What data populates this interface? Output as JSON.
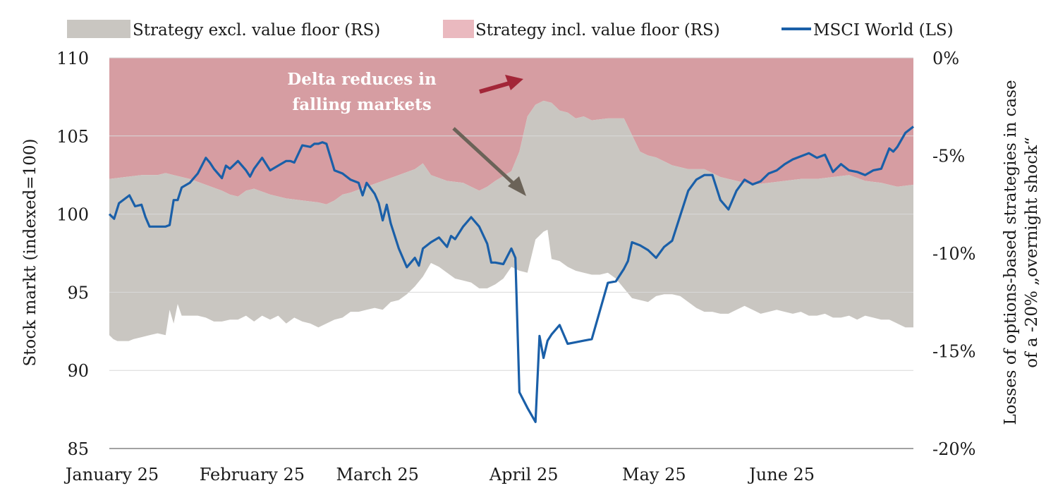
{
  "chart_data": {
    "type": "area",
    "legend": {
      "placement": "top",
      "items": [
        {
          "label": "Strategy excl. value floor (RS)",
          "color": "#c9c6c1",
          "kind": "area"
        },
        {
          "label": "Strategy incl. value floor (RS)",
          "color": "#eab9bf",
          "kind": "area"
        },
        {
          "label": "MSCI World (LS)",
          "color": "#1a5fa8",
          "kind": "line"
        }
      ]
    },
    "colors": {
      "grey_area": "#c9c6c1",
      "red_area": "#d69da2",
      "line": "#1a5fa8",
      "red_arrow": "#a32638",
      "grey_arrow": "#6b6358",
      "grid": "#d9d9d9",
      "axis": "#444444"
    },
    "left_axis": {
      "label": "Stock markt (indexed=100)",
      "range": [
        85,
        110
      ],
      "ticks": [
        85,
        90,
        95,
        100,
        105,
        110
      ]
    },
    "right_axis": {
      "label_lines": [
        "Losses of options-based strategies in case",
        "of a -20% „overnight shock“"
      ],
      "range": [
        -20,
        0
      ],
      "ticks": [
        {
          "value": 0,
          "label": "0%"
        },
        {
          "value": -5,
          "label": "-5%"
        },
        {
          "value": -10,
          "label": "-10%"
        },
        {
          "value": -15,
          "label": "-15%"
        },
        {
          "value": -20,
          "label": "-20%"
        }
      ]
    },
    "x_axis": {
      "range": [
        0,
        1
      ],
      "ticks": [
        {
          "label": "January 25",
          "pos": 0.0
        },
        {
          "label": "February 25",
          "pos": 0.174
        },
        {
          "label": "March 25",
          "pos": 0.33
        },
        {
          "label": "April 25",
          "pos": 0.512
        },
        {
          "label": "May 25",
          "pos": 0.674
        },
        {
          "label": "June 25",
          "pos": 0.833
        }
      ]
    },
    "annotation": {
      "lines": [
        "Delta reduces in",
        "falling markets"
      ]
    },
    "series": [
      {
        "name": "Strategy excl. value floor (RS)",
        "axis": "right",
        "x": [
          0.0,
          0.005,
          0.01,
          0.016,
          0.024,
          0.03,
          0.04,
          0.05,
          0.06,
          0.07,
          0.075,
          0.08,
          0.085,
          0.09,
          0.1,
          0.11,
          0.12,
          0.13,
          0.14,
          0.15,
          0.16,
          0.17,
          0.18,
          0.19,
          0.2,
          0.21,
          0.22,
          0.23,
          0.24,
          0.25,
          0.26,
          0.27,
          0.28,
          0.29,
          0.3,
          0.31,
          0.32,
          0.33,
          0.34,
          0.35,
          0.36,
          0.37,
          0.38,
          0.39,
          0.4,
          0.41,
          0.42,
          0.43,
          0.44,
          0.45,
          0.46,
          0.47,
          0.48,
          0.49,
          0.5,
          0.51,
          0.52,
          0.53,
          0.54,
          0.545,
          0.55,
          0.56,
          0.57,
          0.58,
          0.59,
          0.6,
          0.61,
          0.62,
          0.63,
          0.64,
          0.65,
          0.66,
          0.67,
          0.68,
          0.69,
          0.7,
          0.71,
          0.72,
          0.73,
          0.74,
          0.75,
          0.76,
          0.77,
          0.78,
          0.79,
          0.8,
          0.81,
          0.82,
          0.83,
          0.84,
          0.85,
          0.86,
          0.87,
          0.88,
          0.89,
          0.9,
          0.91,
          0.92,
          0.93,
          0.94,
          0.95,
          0.96,
          0.97,
          0.98,
          0.99,
          1.0
        ],
        "values": [
          -14.2,
          -14.4,
          -14.5,
          -14.5,
          -14.5,
          -14.4,
          -14.3,
          -14.2,
          -14.1,
          -14.2,
          -12.9,
          -13.6,
          -12.6,
          -13.2,
          -13.2,
          -13.2,
          -13.3,
          -13.5,
          -13.5,
          -13.4,
          -13.4,
          -13.2,
          -13.5,
          -13.2,
          -13.4,
          -13.2,
          -13.6,
          -13.3,
          -13.5,
          -13.6,
          -13.8,
          -13.6,
          -13.4,
          -13.3,
          -13.0,
          -13.0,
          -12.9,
          -12.8,
          -12.9,
          -12.5,
          -12.4,
          -12.1,
          -11.7,
          -11.2,
          -10.5,
          -10.7,
          -11.0,
          -11.3,
          -11.4,
          -11.5,
          -11.8,
          -11.8,
          -11.6,
          -11.3,
          -10.7,
          -10.9,
          -11.0,
          -9.3,
          -8.9,
          -8.8,
          -10.3,
          -10.4,
          -10.7,
          -10.9,
          -11.0,
          -11.1,
          -11.1,
          -11.0,
          -11.3,
          -11.8,
          -12.3,
          -12.4,
          -12.5,
          -12.2,
          -12.1,
          -12.1,
          -12.2,
          -12.5,
          -12.8,
          -13.0,
          -13.0,
          -13.1,
          -13.1,
          -12.9,
          -12.7,
          -12.9,
          -13.1,
          -13.0,
          -12.9,
          -13.0,
          -13.1,
          -13.0,
          -13.2,
          -13.2,
          -13.1,
          -13.3,
          -13.3,
          -13.2,
          -13.4,
          -13.2,
          -13.3,
          -13.4,
          -13.4,
          -13.6,
          -13.8,
          -13.8
        ]
      },
      {
        "name": "Strategy incl. value floor (RS)",
        "axis": "right",
        "x": [
          0.0,
          0.02,
          0.04,
          0.06,
          0.07,
          0.08,
          0.1,
          0.12,
          0.14,
          0.15,
          0.16,
          0.17,
          0.18,
          0.2,
          0.22,
          0.24,
          0.26,
          0.27,
          0.28,
          0.29,
          0.3,
          0.32,
          0.34,
          0.36,
          0.38,
          0.39,
          0.4,
          0.42,
          0.44,
          0.46,
          0.47,
          0.48,
          0.5,
          0.51,
          0.52,
          0.53,
          0.54,
          0.55,
          0.56,
          0.57,
          0.58,
          0.59,
          0.6,
          0.62,
          0.64,
          0.66,
          0.67,
          0.68,
          0.7,
          0.72,
          0.74,
          0.76,
          0.78,
          0.8,
          0.82,
          0.84,
          0.86,
          0.88,
          0.9,
          0.92,
          0.94,
          0.96,
          0.98,
          1.0
        ],
        "values": [
          -6.2,
          -6.1,
          -6.0,
          -6.0,
          -5.9,
          -6.0,
          -6.2,
          -6.5,
          -6.8,
          -7.0,
          -7.1,
          -6.8,
          -6.7,
          -7.0,
          -7.2,
          -7.3,
          -7.4,
          -7.5,
          -7.3,
          -7.0,
          -6.9,
          -6.6,
          -6.3,
          -6.0,
          -5.7,
          -5.4,
          -6.0,
          -6.3,
          -6.4,
          -6.8,
          -6.6,
          -6.3,
          -5.8,
          -4.8,
          -3.0,
          -2.4,
          -2.2,
          -2.3,
          -2.7,
          -2.8,
          -3.1,
          -3.0,
          -3.2,
          -3.1,
          -3.1,
          -4.8,
          -5.0,
          -5.1,
          -5.5,
          -5.7,
          -5.7,
          -6.1,
          -6.3,
          -6.5,
          -6.4,
          -6.3,
          -6.2,
          -6.2,
          -6.1,
          -6.0,
          -6.3,
          -6.4,
          -6.6,
          -6.5
        ]
      },
      {
        "name": "MSCI World (LS)",
        "axis": "left",
        "x": [
          0.0,
          0.006,
          0.012,
          0.025,
          0.032,
          0.04,
          0.045,
          0.05,
          0.06,
          0.07,
          0.075,
          0.08,
          0.085,
          0.09,
          0.1,
          0.11,
          0.12,
          0.125,
          0.13,
          0.14,
          0.145,
          0.15,
          0.16,
          0.17,
          0.175,
          0.18,
          0.19,
          0.2,
          0.21,
          0.22,
          0.225,
          0.23,
          0.24,
          0.25,
          0.255,
          0.26,
          0.265,
          0.27,
          0.28,
          0.29,
          0.3,
          0.31,
          0.315,
          0.32,
          0.33,
          0.335,
          0.34,
          0.345,
          0.35,
          0.36,
          0.37,
          0.38,
          0.385,
          0.39,
          0.4,
          0.41,
          0.42,
          0.425,
          0.43,
          0.44,
          0.45,
          0.46,
          0.47,
          0.475,
          0.48,
          0.49,
          0.5,
          0.505,
          0.51,
          0.52,
          0.53,
          0.535,
          0.54,
          0.545,
          0.55,
          0.555,
          0.56,
          0.57,
          0.58,
          0.59,
          0.6,
          0.62,
          0.63,
          0.64,
          0.645,
          0.65,
          0.66,
          0.67,
          0.68,
          0.69,
          0.7,
          0.71,
          0.72,
          0.73,
          0.74,
          0.75,
          0.76,
          0.77,
          0.78,
          0.79,
          0.8,
          0.81,
          0.82,
          0.83,
          0.84,
          0.85,
          0.86,
          0.87,
          0.88,
          0.89,
          0.9,
          0.91,
          0.92,
          0.93,
          0.94,
          0.95,
          0.96,
          0.97,
          0.975,
          0.98,
          0.99,
          1.0
        ],
        "values": [
          100.0,
          99.7,
          100.7,
          101.2,
          100.5,
          100.6,
          99.8,
          99.2,
          99.2,
          99.2,
          99.3,
          100.9,
          100.9,
          101.7,
          102.0,
          102.6,
          103.6,
          103.3,
          102.9,
          102.3,
          103.1,
          102.9,
          103.4,
          102.8,
          102.4,
          102.9,
          103.6,
          102.8,
          103.1,
          103.4,
          103.4,
          103.3,
          104.4,
          104.3,
          104.5,
          104.5,
          104.6,
          104.5,
          102.8,
          102.6,
          102.2,
          102.0,
          101.2,
          102.0,
          101.3,
          100.7,
          99.6,
          100.6,
          99.4,
          97.8,
          96.6,
          97.2,
          96.7,
          97.8,
          98.2,
          98.5,
          97.9,
          98.6,
          98.4,
          99.2,
          99.8,
          99.2,
          98.1,
          96.9,
          96.9,
          96.8,
          97.8,
          97.2,
          88.6,
          87.6,
          86.7,
          92.2,
          90.8,
          91.9,
          92.3,
          92.6,
          92.9,
          91.7,
          91.8,
          91.9,
          92.0,
          95.6,
          95.7,
          96.5,
          97.0,
          98.2,
          98.0,
          97.7,
          97.2,
          97.9,
          98.3,
          99.9,
          101.5,
          102.2,
          102.5,
          102.5,
          100.9,
          100.3,
          101.5,
          102.2,
          101.9,
          102.1,
          102.6,
          102.8,
          103.2,
          103.5,
          103.7,
          103.9,
          103.6,
          103.8,
          102.7,
          103.2,
          102.8,
          102.7,
          102.5,
          102.8,
          102.9,
          104.2,
          104.0,
          104.3,
          105.2,
          105.6
        ]
      }
    ]
  }
}
